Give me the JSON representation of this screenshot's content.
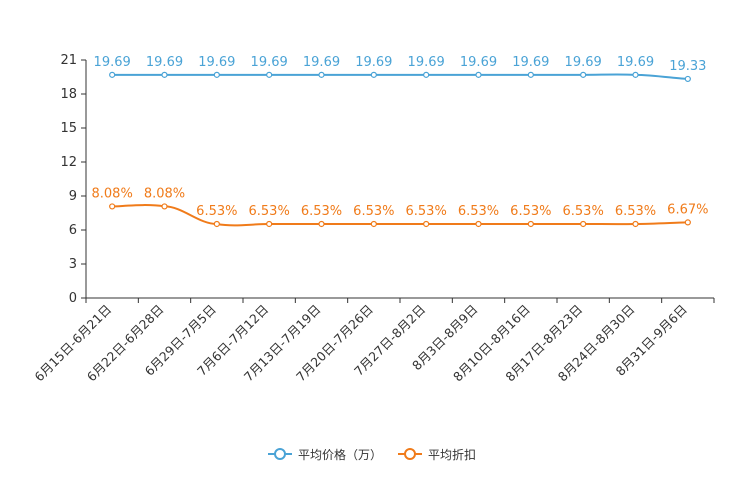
{
  "chart_data": {
    "type": "line",
    "categories": [
      "6月15日-6月21日",
      "6月22日-6月28日",
      "6月29日-7月5日",
      "7月6日-7月12日",
      "7月13日-7月19日",
      "7月20日-7月26日",
      "7月27日-8月2日",
      "8月3日-8月9日",
      "8月10日-8月16日",
      "8月17日-8月23日",
      "8月24日-8月30日",
      "8月31日-9月6日"
    ],
    "series": [
      {
        "name": "平均价格（万）",
        "color": "#4aa3d6",
        "values": [
          19.69,
          19.69,
          19.69,
          19.69,
          19.69,
          19.69,
          19.69,
          19.69,
          19.69,
          19.69,
          19.69,
          19.33
        ],
        "labels": [
          "19.69",
          "19.69",
          "19.69",
          "19.69",
          "19.69",
          "19.69",
          "19.69",
          "19.69",
          "19.69",
          "19.69",
          "19.69",
          "19.33"
        ]
      },
      {
        "name": "平均折扣",
        "color": "#f07b1a",
        "values": [
          8.08,
          8.08,
          6.53,
          6.53,
          6.53,
          6.53,
          6.53,
          6.53,
          6.53,
          6.53,
          6.53,
          6.67
        ],
        "labels": [
          "8.08%",
          "8.08%",
          "6.53%",
          "6.53%",
          "6.53%",
          "6.53%",
          "6.53%",
          "6.53%",
          "6.53%",
          "6.53%",
          "6.53%",
          "6.67%"
        ]
      }
    ],
    "ylim": [
      0,
      21
    ],
    "yticks": [
      "0",
      "3",
      "6",
      "9",
      "12",
      "15",
      "18",
      "21"
    ],
    "title": "",
    "xlabel": "",
    "ylabel": "",
    "legend": "bottom-center",
    "grid": false
  },
  "legend_items": [
    {
      "label": "平均价格（万）",
      "color": "#4aa3d6"
    },
    {
      "label": "平均折扣",
      "color": "#f07b1a"
    }
  ]
}
